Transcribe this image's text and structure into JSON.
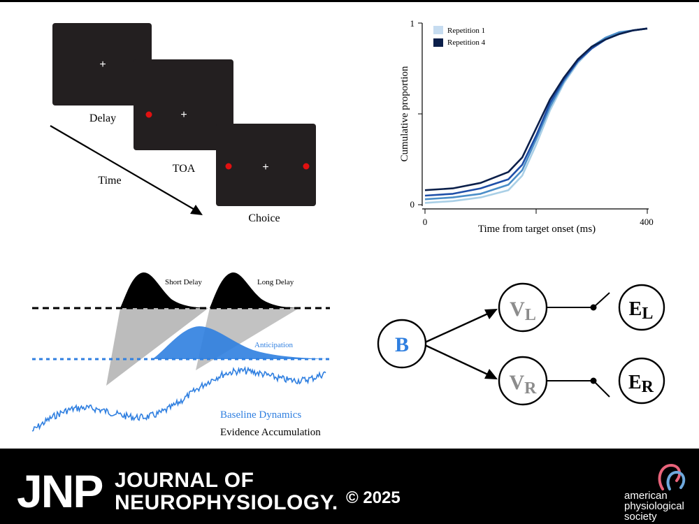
{
  "panel_a": {
    "labels": {
      "delay": "Delay",
      "toa": "TOA",
      "choice": "Choice",
      "time": "Time"
    },
    "colors": {
      "screen": "#231f20",
      "fixation": "#ffffff",
      "target": "#e01010"
    }
  },
  "chart_data": {
    "type": "line",
    "title": "",
    "xlabel": "Time from target onset (ms)",
    "ylabel": "Cumulative proportion",
    "xlim": [
      0,
      400
    ],
    "ylim": [
      0,
      1
    ],
    "x_ticks": [
      "0",
      "400"
    ],
    "y_ticks": [
      "0",
      "1"
    ],
    "legend": {
      "placement": "top-left",
      "entries": [
        "Repetition 1",
        "Repetition 4"
      ]
    },
    "grid": false,
    "series": [
      {
        "name": "Repetition 1",
        "color": "#a9cfe6",
        "x": [
          0,
          50,
          100,
          150,
          175,
          200,
          225,
          250,
          275,
          300,
          325,
          350,
          375,
          400
        ],
        "y": [
          0.01,
          0.02,
          0.04,
          0.08,
          0.16,
          0.33,
          0.52,
          0.67,
          0.78,
          0.86,
          0.91,
          0.94,
          0.96,
          0.97
        ]
      },
      {
        "color": "#4b8ec8",
        "x": [
          0,
          50,
          100,
          150,
          175,
          200,
          225,
          250,
          275,
          300,
          325,
          350,
          375,
          400
        ],
        "y": [
          0.03,
          0.04,
          0.06,
          0.11,
          0.19,
          0.36,
          0.54,
          0.68,
          0.79,
          0.87,
          0.92,
          0.95,
          0.96,
          0.97
        ]
      },
      {
        "color": "#1f4fa8",
        "x": [
          0,
          50,
          100,
          150,
          175,
          200,
          225,
          250,
          275,
          300,
          325,
          350,
          375,
          400
        ],
        "y": [
          0.05,
          0.06,
          0.09,
          0.14,
          0.22,
          0.38,
          0.56,
          0.69,
          0.79,
          0.86,
          0.91,
          0.94,
          0.96,
          0.97
        ]
      },
      {
        "name": "Repetition 4",
        "color": "#0b1f4a",
        "x": [
          0,
          50,
          100,
          150,
          175,
          200,
          225,
          250,
          275,
          300,
          325,
          350,
          375,
          400
        ],
        "y": [
          0.08,
          0.09,
          0.12,
          0.18,
          0.26,
          0.42,
          0.58,
          0.7,
          0.8,
          0.87,
          0.91,
          0.94,
          0.96,
          0.97
        ]
      }
    ]
  },
  "panel_c": {
    "labels": {
      "short_delay": "Short Delay",
      "long_delay": "Long Delay",
      "anticipation": "Anticipation",
      "baseline": "Baseline Dynamics",
      "evidence": "Evidence Accumulation"
    },
    "colors": {
      "black": "#000000",
      "blue": "#2f7fe0",
      "gray": "#a6a6a6"
    }
  },
  "panel_d": {
    "nodes": {
      "b": "B",
      "v": "V",
      "e": "E",
      "left_sub": "L",
      "right_sub": "R"
    },
    "colors": {
      "b": "#2f7fe0",
      "v": "#8c8c8c",
      "e": "#000000"
    }
  },
  "footer": {
    "jnp": "JNP",
    "title_line1": "JOURNAL OF",
    "title_line2": "NEUROPHYSIOLOGY.",
    "copyright": "© 2025",
    "aps_line1": "american",
    "aps_line2": "physiological",
    "aps_line3": "society"
  }
}
